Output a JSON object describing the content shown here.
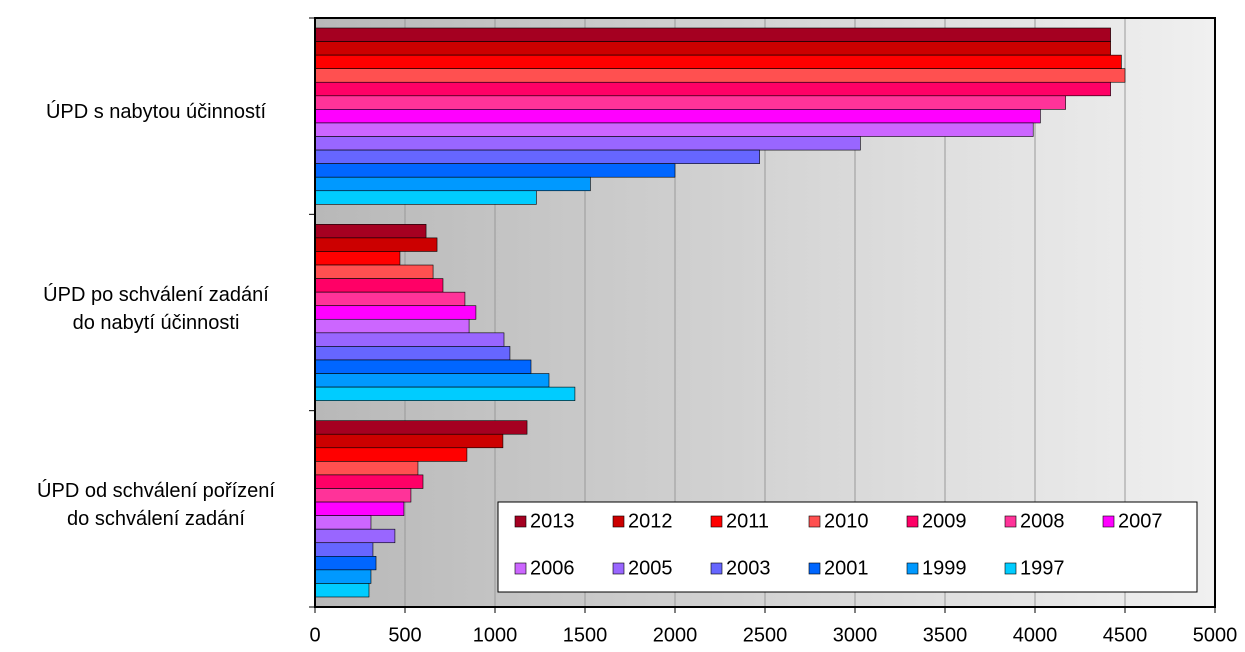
{
  "chart_data": {
    "type": "hbar",
    "categories": [
      "ÚPD s nabytou účinností",
      "ÚPD po schválení zadání\ndo nabytí účinnosti",
      "ÚPD od schválení pořízení\ndo schválení zadání"
    ],
    "series": [
      {
        "name": "2013",
        "color": "#a50021",
        "values": [
          4420,
          617,
          1178
        ]
      },
      {
        "name": "2012",
        "color": "#cc0000",
        "values": [
          4420,
          678,
          1044
        ]
      },
      {
        "name": "2011",
        "color": "#ff0000",
        "values": [
          4480,
          472,
          844
        ]
      },
      {
        "name": "2010",
        "color": "#ff5050",
        "values": [
          4500,
          656,
          572
        ]
      },
      {
        "name": "2009",
        "color": "#ff0066",
        "values": [
          4420,
          711,
          600
        ]
      },
      {
        "name": "2008",
        "color": "#ff3399",
        "values": [
          4170,
          833,
          533
        ]
      },
      {
        "name": "2007",
        "color": "#ff00ff",
        "values": [
          4030,
          894,
          494
        ]
      },
      {
        "name": "2006",
        "color": "#cc66ff",
        "values": [
          3990,
          856,
          311
        ]
      },
      {
        "name": "2005",
        "color": "#9966ff",
        "values": [
          3030,
          1050,
          444
        ]
      },
      {
        "name": "2003",
        "color": "#6666ff",
        "values": [
          2470,
          1083,
          322
        ]
      },
      {
        "name": "2001",
        "color": "#0066ff",
        "values": [
          2000,
          1200,
          339
        ]
      },
      {
        "name": "1999",
        "color": "#0099ff",
        "values": [
          1530,
          1300,
          311
        ]
      },
      {
        "name": "1997",
        "color": "#00ccff",
        "values": [
          1230,
          1444,
          300
        ]
      }
    ],
    "xlim": [
      0,
      5000
    ],
    "xticks": [
      0,
      500,
      1000,
      1500,
      2000,
      2500,
      3000,
      3500,
      4000,
      4500,
      5000
    ],
    "grid": true,
    "legend": "lower right"
  }
}
